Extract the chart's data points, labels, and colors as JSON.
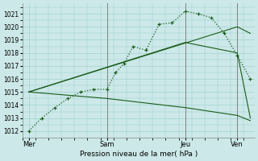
{
  "bg_color": "#cce8e8",
  "grid_color": "#99cccc",
  "line_color": "#1a5c1a",
  "ylim": [
    1011.5,
    1021.8
  ],
  "yticks": [
    1012,
    1013,
    1014,
    1015,
    1016,
    1017,
    1018,
    1019,
    1020,
    1021
  ],
  "ytick_fontsize": 5.5,
  "xlabel": "Pression niveau de la mer( hPa )",
  "xlabel_fontsize": 6.5,
  "xtick_labels": [
    "Mer",
    "Sam",
    "Jeu",
    "Ven"
  ],
  "xtick_positions": [
    0,
    36,
    72,
    96
  ],
  "xlim": [
    -3,
    104
  ],
  "vlines_x": [
    36,
    72,
    96
  ],
  "vlines_color": "#777777",
  "main_line": {
    "x": [
      0,
      6,
      12,
      18,
      24,
      30,
      36,
      40,
      44,
      48,
      54,
      60,
      66,
      72,
      78,
      84,
      90,
      96,
      102
    ],
    "y": [
      1012,
      1013,
      1013.8,
      1014.5,
      1015.0,
      1015.2,
      1015.2,
      1016.5,
      1017.2,
      1018.5,
      1018.2,
      1020.2,
      1020.3,
      1021.2,
      1021.0,
      1020.7,
      1019.5,
      1017.8,
      1016.0
    ]
  },
  "fan_line_upper": {
    "x": [
      0,
      96,
      102
    ],
    "y": [
      1015.0,
      1020.0,
      1019.5
    ]
  },
  "fan_line_mid": {
    "x": [
      0,
      72,
      96,
      102
    ],
    "y": [
      1015.0,
      1018.8,
      1018.0,
      1013.0
    ]
  },
  "fan_line_lower": {
    "x": [
      0,
      36,
      72,
      96,
      102
    ],
    "y": [
      1015.0,
      1014.5,
      1013.8,
      1013.2,
      1012.8
    ]
  }
}
